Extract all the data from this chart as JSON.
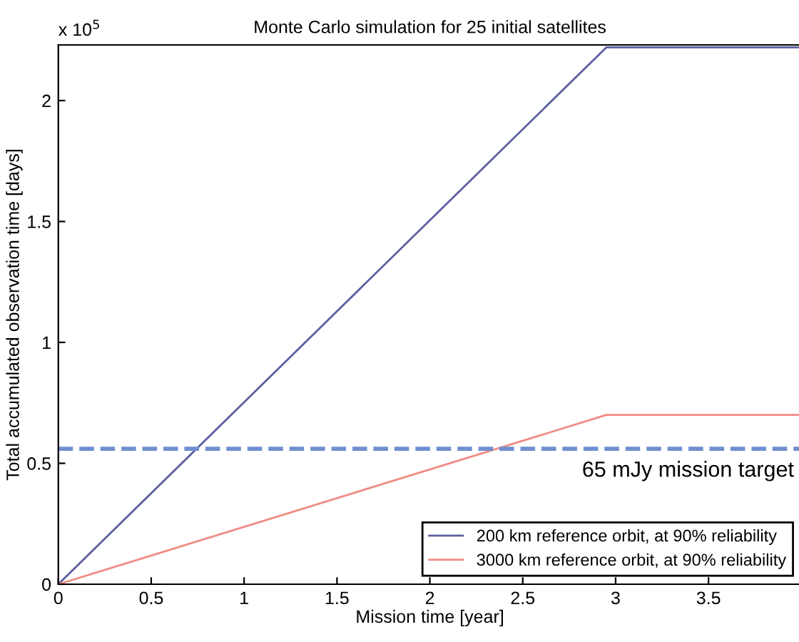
{
  "chart_data": {
    "type": "line",
    "title": "Monte Carlo simulation for 25 initial satellites",
    "xlabel": "Mission time [year]",
    "ylabel": "Total accumulated observation time [days]",
    "annotations": [
      "x 10$^{5}$"
    ],
    "series": [
      {
        "name": "200 km reference orbit, at 90% reliability",
        "color": "#5a5f9e",
        "x": [
          0,
          2.95,
          4
        ],
        "values": [
          0,
          2.22,
          2.22
        ]
      },
      {
        "name": "3000 km reference orbit, at 90% reliability",
        "color": "#ef8c84",
        "x": [
          0,
          2.95,
          4
        ],
        "values": [
          0,
          0.7,
          0.7
        ]
      }
    ],
    "ref_lines": [
      {
        "axis": "y",
        "value": 0.56,
        "label": "65 mJy mission target",
        "color": "#6f8fd0",
        "line_style": "dashed"
      }
    ],
    "xlim": [
      0,
      4
    ],
    "ylim": [
      0,
      2.23
    ],
    "xticks": [
      0,
      0.5,
      1,
      1.5,
      2,
      2.5,
      3,
      3.5
    ],
    "yticks": [
      0,
      0.5,
      1,
      1.5,
      2
    ],
    "grid": false,
    "legend": "bottom right",
    "line_style": "solid",
    "marker": "none"
  }
}
